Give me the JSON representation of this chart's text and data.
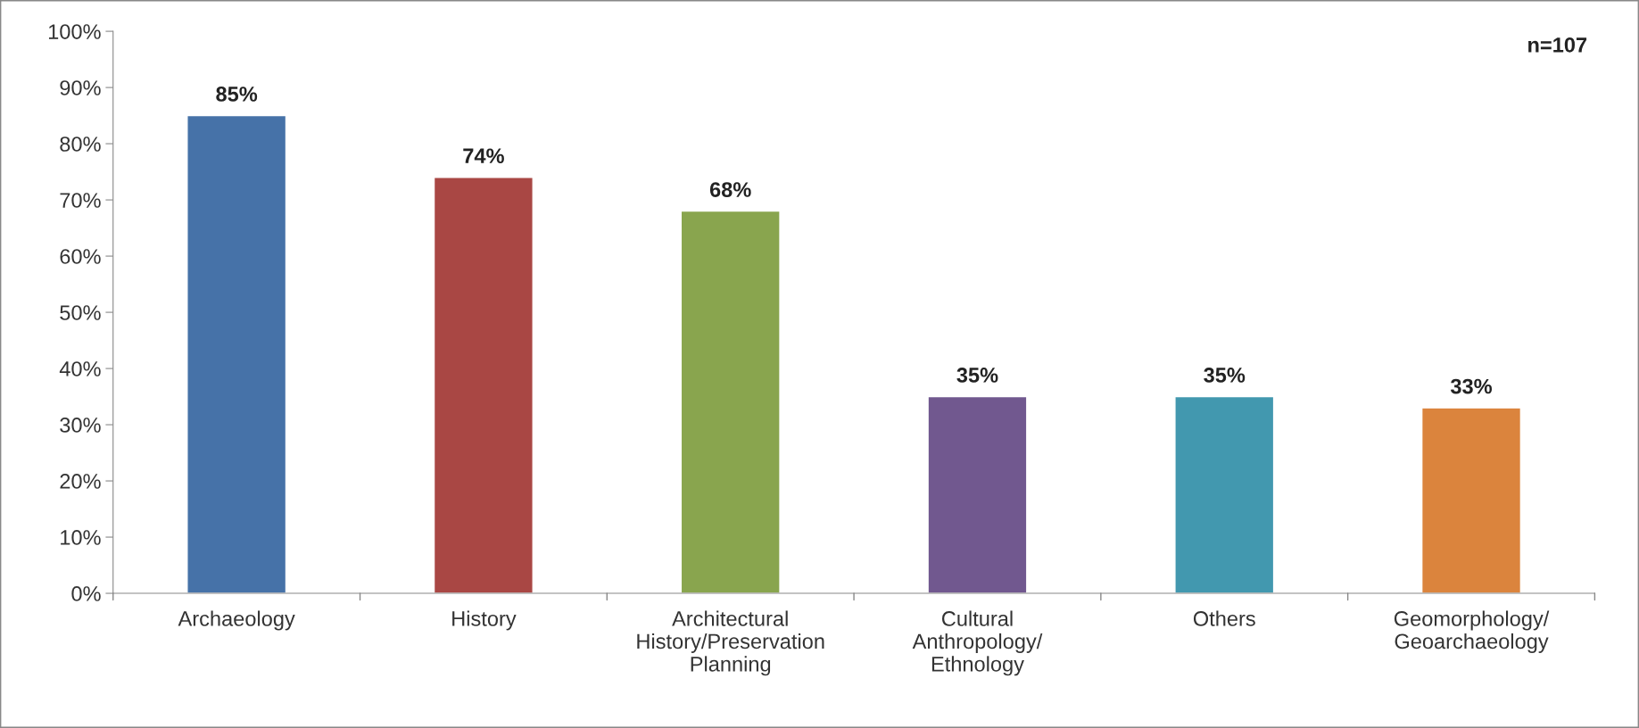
{
  "chart_data": {
    "type": "bar",
    "categories": [
      "Archaeology",
      "History",
      "Architectural\nHistory/Preservation\nPlanning",
      "Cultural\nAnthropology/\nEthnology",
      "Others",
      "Geomorphology/\nGeoarchaeology"
    ],
    "values": [
      85,
      74,
      68,
      35,
      35,
      33
    ],
    "colors": [
      "#4672a8",
      "#a94744",
      "#89a54e",
      "#71588f",
      "#4298af",
      "#db843d"
    ],
    "value_labels": [
      "85%",
      "74%",
      "68%",
      "35%",
      "35%",
      "33%"
    ],
    "ylim": [
      0,
      100
    ],
    "yticks": [
      {
        "value": 0,
        "label": "0%"
      },
      {
        "value": 10,
        "label": "10%"
      },
      {
        "value": 20,
        "label": "20%"
      },
      {
        "value": 30,
        "label": "30%"
      },
      {
        "value": 40,
        "label": "40%"
      },
      {
        "value": 50,
        "label": "50%"
      },
      {
        "value": 60,
        "label": "60%"
      },
      {
        "value": 70,
        "label": "70%"
      },
      {
        "value": 80,
        "label": "80%"
      },
      {
        "value": 90,
        "label": "90%"
      },
      {
        "value": 100,
        "label": "100%"
      }
    ],
    "annotations": [
      "n=107"
    ],
    "grid": false,
    "legend": false
  }
}
